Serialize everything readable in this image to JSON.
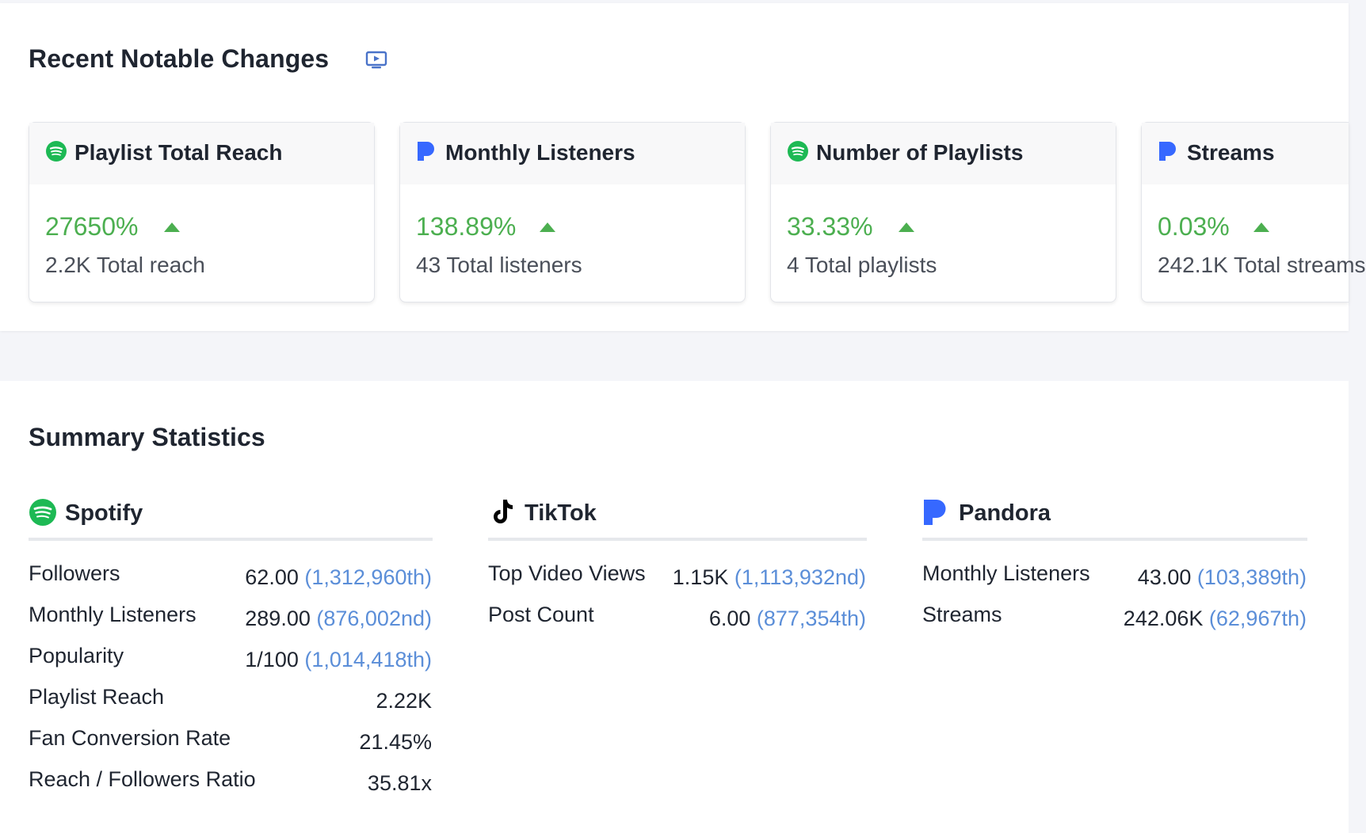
{
  "recent": {
    "title": "Recent Notable Changes",
    "cards": [
      {
        "title": "Playlist Total Reach",
        "percent": "27650%",
        "subtitle": "2.2K Total reach",
        "platform": "spotify-icon"
      },
      {
        "title": "Monthly Listeners",
        "percent": "138.89%",
        "subtitle": "43 Total listeners",
        "platform": "pandora-icon"
      },
      {
        "title": "Number of Playlists",
        "percent": "33.33%",
        "subtitle": "4 Total playlists",
        "platform": "spotify-icon"
      },
      {
        "title": "Streams",
        "percent": "0.03%",
        "subtitle": "242.1K Total streams",
        "platform": "pandora-icon"
      }
    ]
  },
  "summary": {
    "title": "Summary Statistics",
    "spotify": {
      "name": "Spotify",
      "rows": [
        {
          "label": "Followers",
          "value": "62.00",
          "rank": "(1,312,960th)"
        },
        {
          "label": "Monthly Listeners",
          "value": "289.00",
          "rank": "(876,002nd)"
        },
        {
          "label": "Popularity",
          "value": "1/100",
          "rank": "(1,014,418th)"
        },
        {
          "label": "Playlist Reach",
          "value": "2.22K",
          "rank": ""
        },
        {
          "label": "Fan Conversion Rate",
          "value": "21.45%",
          "rank": ""
        },
        {
          "label": "Reach / Followers Ratio",
          "value": "35.81x",
          "rank": ""
        }
      ]
    },
    "tiktok": {
      "name": "TikTok",
      "rows": [
        {
          "label": "Top Video Views",
          "value": "1.15K",
          "rank": "(1,113,932nd)"
        },
        {
          "label": "Post Count",
          "value": "6.00",
          "rank": "(877,354th)"
        }
      ]
    },
    "pandora": {
      "name": "Pandora",
      "rows": [
        {
          "label": "Monthly Listeners",
          "value": "43.00",
          "rank": "(103,389th)"
        },
        {
          "label": "Streams",
          "value": "242.06K",
          "rank": "(62,967th)"
        }
      ]
    }
  },
  "colors": {
    "positive": "#4caf50",
    "rank_link": "#5b8ed8",
    "spotify": "#1db954",
    "pandora": "#3668ff",
    "tiktok": "#000000"
  }
}
